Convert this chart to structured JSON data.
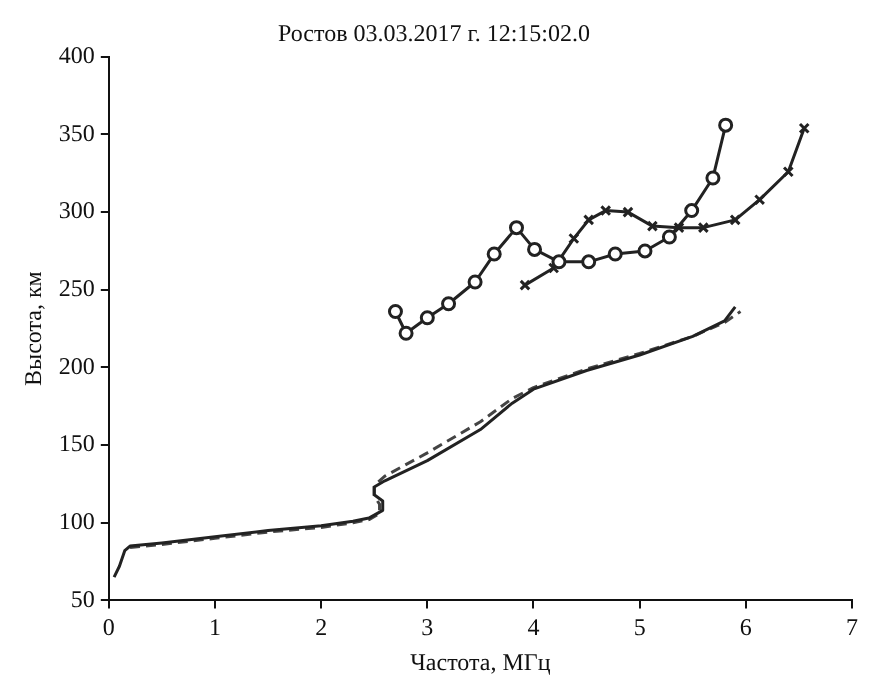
{
  "chart_data": {
    "type": "line",
    "title": "Ростов 03.03.2017 г. 12:15:02.0",
    "xlabel": "Частота, МГц",
    "ylabel": "Высота, км",
    "xlim": [
      0,
      7
    ],
    "xticks": [
      0,
      1,
      2,
      3,
      4,
      5,
      6,
      7
    ],
    "ylim": [
      50,
      400
    ],
    "yticks": [
      50,
      100,
      150,
      200,
      250,
      300,
      350,
      400
    ],
    "grid": false,
    "legend": false,
    "series": [
      {
        "color": "#222222",
        "marker": "circle",
        "line_style": "solid",
        "x": [
          2.7,
          2.8,
          3.0,
          3.2,
          3.45,
          3.63,
          3.84,
          4.01,
          4.24,
          4.52,
          4.77,
          5.05,
          5.28,
          5.49,
          5.69,
          5.81
        ],
        "values": [
          236,
          222,
          232,
          241,
          255,
          273,
          290,
          276,
          268,
          268,
          273,
          275,
          284,
          301,
          322,
          356
        ]
      },
      {
        "color": "#222222",
        "marker": "cross",
        "line_style": "solid",
        "x": [
          3.92,
          4.19,
          4.38,
          4.52,
          4.68,
          4.89,
          5.12,
          5.37,
          5.6,
          5.9,
          6.13,
          6.4,
          6.55
        ],
        "values": [
          253,
          264,
          283,
          295,
          301,
          300,
          291,
          290,
          290,
          295,
          308,
          326,
          354
        ]
      },
      {
        "color": "#222222",
        "marker": "none",
        "line_style": "solid",
        "x": [
          0.05,
          0.1,
          0.15,
          0.2,
          0.5,
          1,
          1.5,
          2,
          2.3,
          2.45,
          2.58,
          2.58,
          2.5,
          2.5,
          2.6,
          3,
          3.5,
          3.8,
          4,
          4.5,
          5,
          5.5,
          5.8,
          5.9
        ],
        "values": [
          65,
          72,
          82,
          85,
          87,
          91,
          95,
          98,
          101,
          103,
          108,
          114,
          118,
          123,
          127,
          140,
          160,
          177,
          186,
          198,
          208,
          220,
          230,
          239
        ]
      },
      {
        "color": "#444444",
        "marker": "none",
        "line_style": "dashed",
        "x": [
          0.2,
          0.5,
          1,
          1.5,
          2,
          2.3,
          2.45,
          2.55,
          2.55,
          2.5,
          2.5,
          2.6,
          3,
          3.5,
          3.8,
          4,
          4.5,
          5,
          5.5,
          5.8,
          5.95
        ],
        "values": [
          84,
          86,
          90,
          94,
          97,
          100,
          102,
          106,
          112,
          117,
          124,
          130,
          145,
          165,
          180,
          187,
          199,
          209,
          220,
          229,
          236
        ]
      }
    ]
  }
}
